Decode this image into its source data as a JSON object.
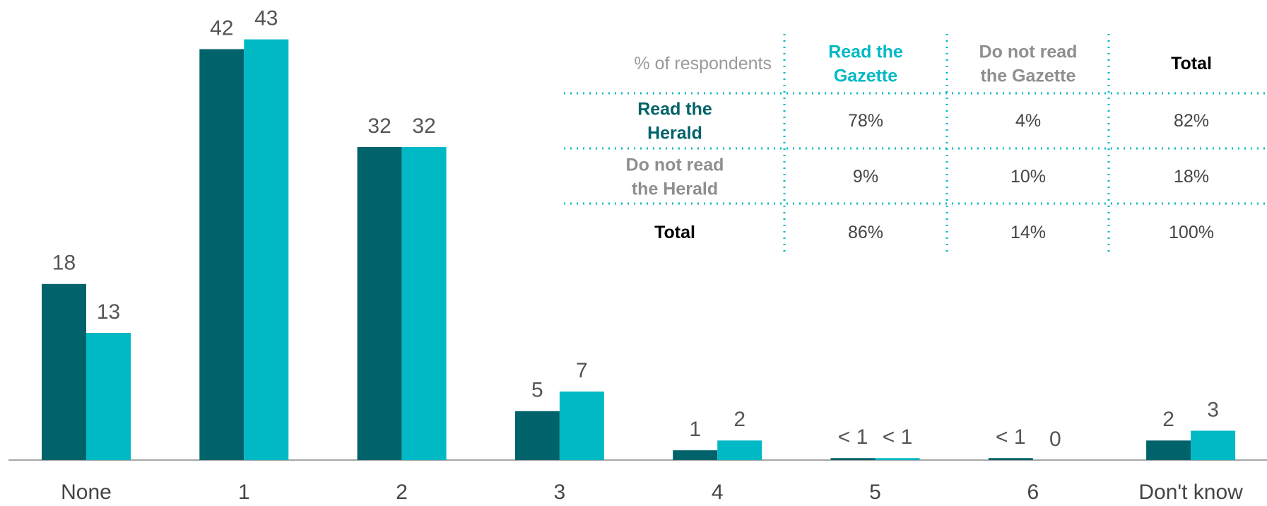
{
  "chart_data": {
    "type": "bar",
    "categories": [
      "None",
      "1",
      "2",
      "3",
      "4",
      "5",
      "6",
      "Don't know"
    ],
    "series": [
      {
        "color": "#00636b",
        "values": [
          18,
          42,
          32,
          5,
          1,
          0.2,
          0.2,
          2
        ],
        "value_labels": [
          "18",
          "42",
          "32",
          "5",
          "1",
          "< 1",
          "< 1",
          "2"
        ]
      },
      {
        "color": "#00b9c5",
        "values": [
          13,
          43,
          32,
          7,
          2,
          0.2,
          0,
          3
        ],
        "value_labels": [
          "13",
          "43",
          "32",
          "7",
          "2",
          "< 1",
          "0",
          "3"
        ]
      }
    ],
    "ylim": [
      0,
      45
    ]
  },
  "table": {
    "corner": "% of respondents",
    "columns": [
      "Read the Gazette",
      "Do not read the Gazette",
      "Total"
    ],
    "rows": [
      {
        "label": "Read the Herald",
        "cells": [
          "78%",
          "4%",
          "82%"
        ]
      },
      {
        "label": "Do not read the Herald",
        "cells": [
          "9%",
          "10%",
          "18%"
        ]
      },
      {
        "label": "Total",
        "cells": [
          "86%",
          "14%",
          "100%"
        ]
      }
    ]
  }
}
